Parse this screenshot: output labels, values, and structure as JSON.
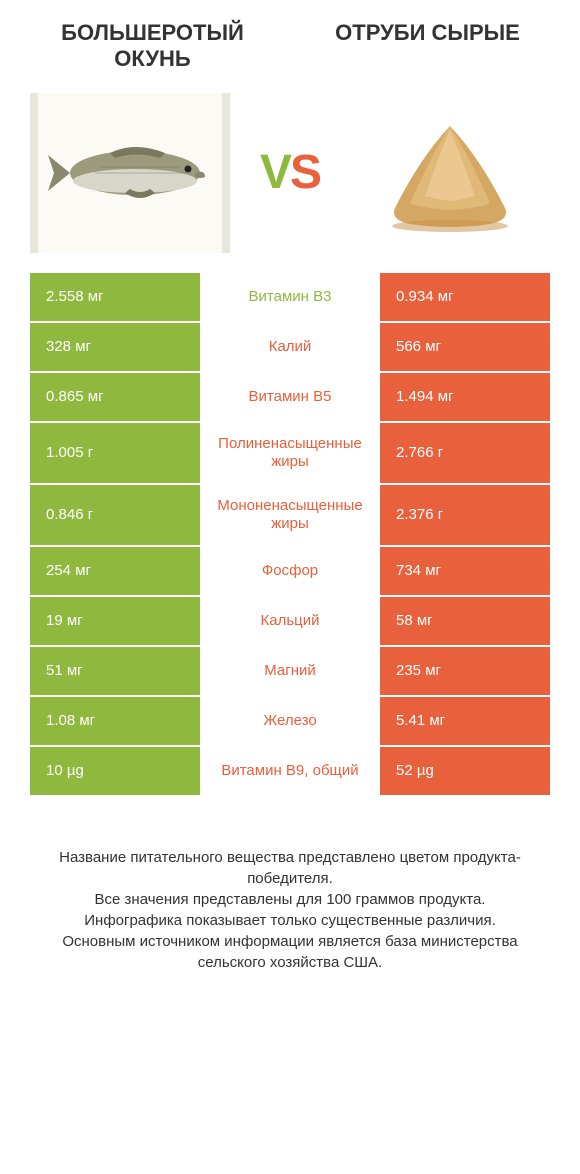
{
  "colors": {
    "green": "#8fb93e",
    "orange": "#e8603c",
    "text": "#333333",
    "bg": "#ffffff",
    "img_left_bg": "#fbfaf5",
    "img_left_border": "#e8e6da"
  },
  "typography": {
    "title_fontsize": 22,
    "vs_fontsize": 48,
    "cell_fontsize": 15,
    "footer_fontsize": 15
  },
  "header": {
    "left_title": "Большеротый окунь",
    "right_title": "Отруби сырые"
  },
  "vs": {
    "v": "V",
    "s": "S"
  },
  "rows": [
    {
      "left": "2.558 мг",
      "mid": "Витамин B3",
      "right": "0.934 мг",
      "winner": "left",
      "tall": false
    },
    {
      "left": "328 мг",
      "mid": "Калий",
      "right": "566 мг",
      "winner": "right",
      "tall": false
    },
    {
      "left": "0.865 мг",
      "mid": "Витамин B5",
      "right": "1.494 мг",
      "winner": "right",
      "tall": false
    },
    {
      "left": "1.005 г",
      "mid": "Полиненасыщенные жиры",
      "right": "2.766 г",
      "winner": "right",
      "tall": true
    },
    {
      "left": "0.846 г",
      "mid": "Мононенасыщенные жиры",
      "right": "2.376 г",
      "winner": "right",
      "tall": true
    },
    {
      "left": "254 мг",
      "mid": "Фосфор",
      "right": "734 мг",
      "winner": "right",
      "tall": false
    },
    {
      "left": "19 мг",
      "mid": "Кальций",
      "right": "58 мг",
      "winner": "right",
      "tall": false
    },
    {
      "left": "51 мг",
      "mid": "Магний",
      "right": "235 мг",
      "winner": "right",
      "tall": false
    },
    {
      "left": "1.08 мг",
      "mid": "Железо",
      "right": "5.41 мг",
      "winner": "right",
      "tall": false
    },
    {
      "left": "10 µg",
      "mid": "Витамин B9, общий",
      "right": "52 µg",
      "winner": "right",
      "tall": false
    }
  ],
  "footer": {
    "line1": "Название питательного вещества представлено цветом продукта-победителя.",
    "line2": "Все значения представлены для 100 граммов продукта.",
    "line3": "Инфографика показывает только существенные различия.",
    "line4": "Основным источником информации является база министерства сельского хозяйства США."
  }
}
